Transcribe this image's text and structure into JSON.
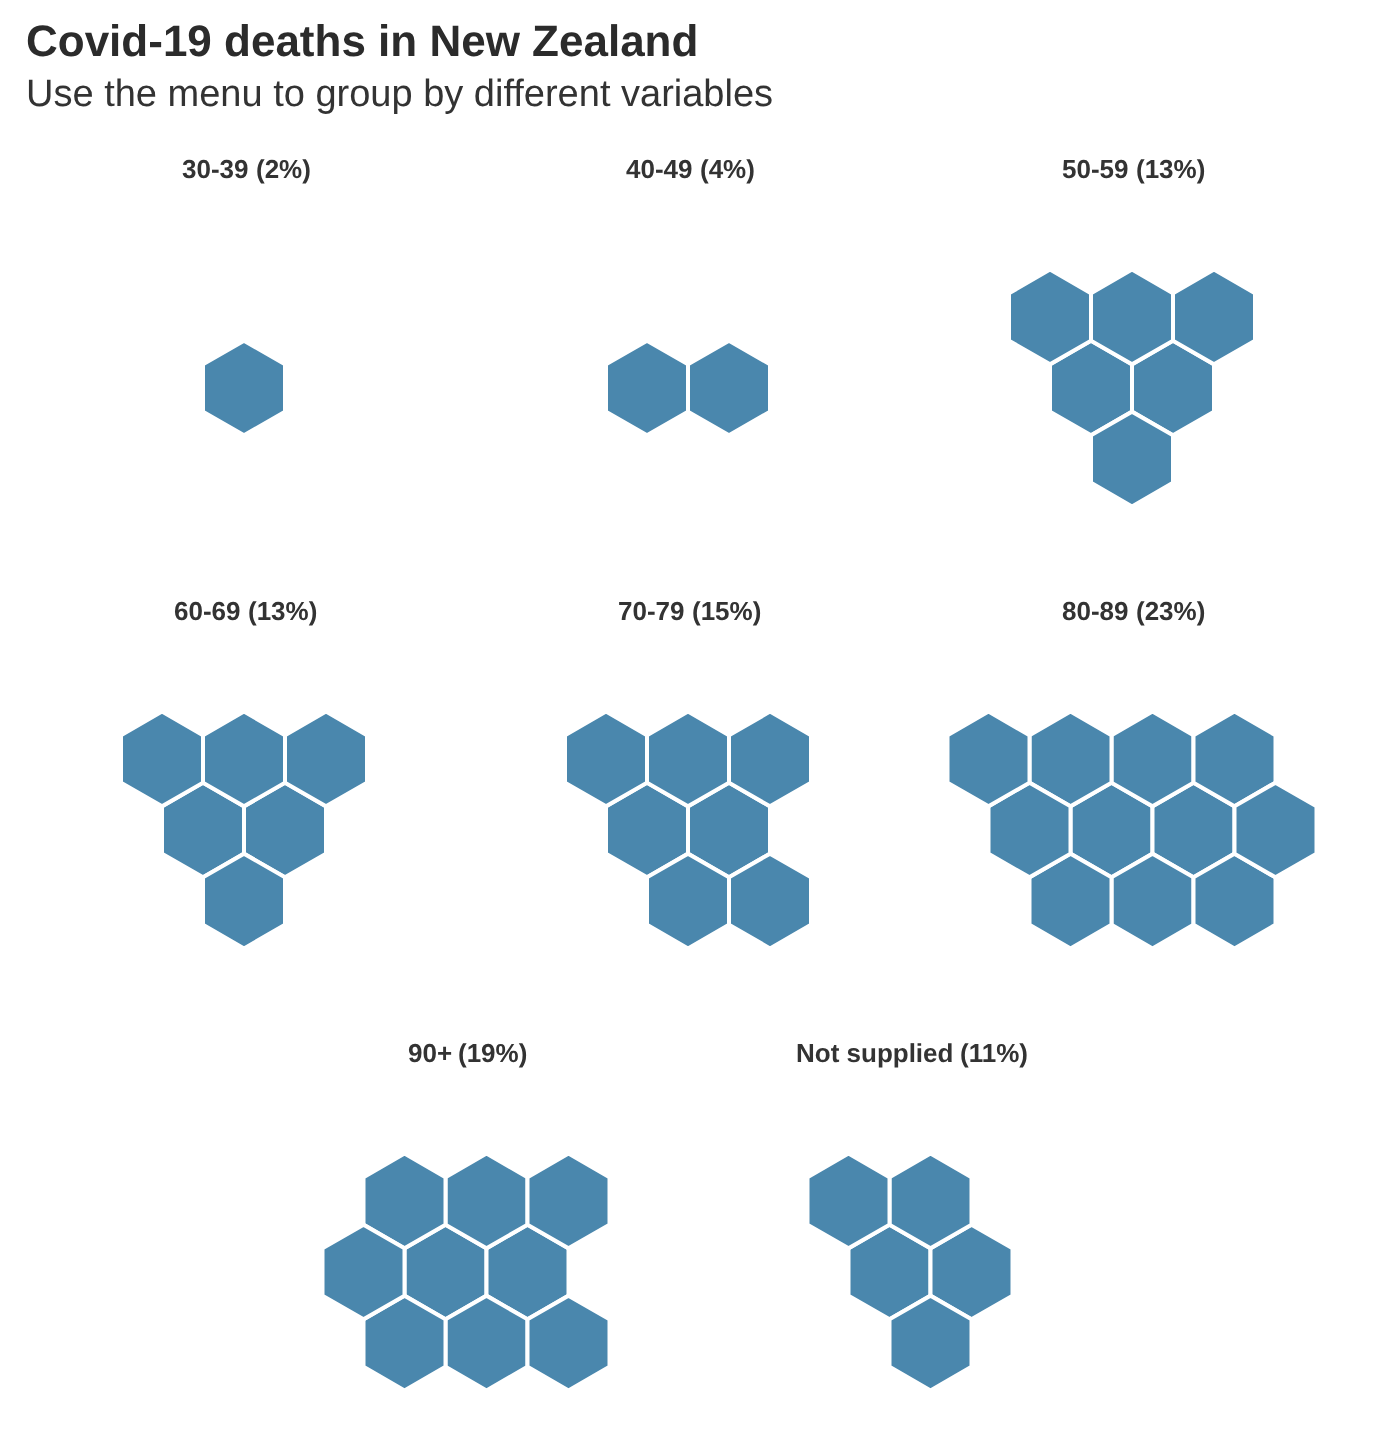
{
  "chart_data": {
    "type": "other",
    "title": "Covid-19 deaths in New Zealand",
    "subtitle": "Use the menu to group by different variables",
    "categories": [
      "30-39",
      "40-49",
      "50-59",
      "60-69",
      "70-79",
      "80-89",
      "90+",
      "Not supplied"
    ],
    "values": [
      2,
      4,
      13,
      13,
      15,
      23,
      19,
      11
    ],
    "value_labels": [
      "(2%)",
      "(4%)",
      "(13%)",
      "(13%)",
      "(15%)",
      "(23%)",
      "(19%)",
      "(11%)"
    ],
    "color": "#4a87ad"
  }
}
